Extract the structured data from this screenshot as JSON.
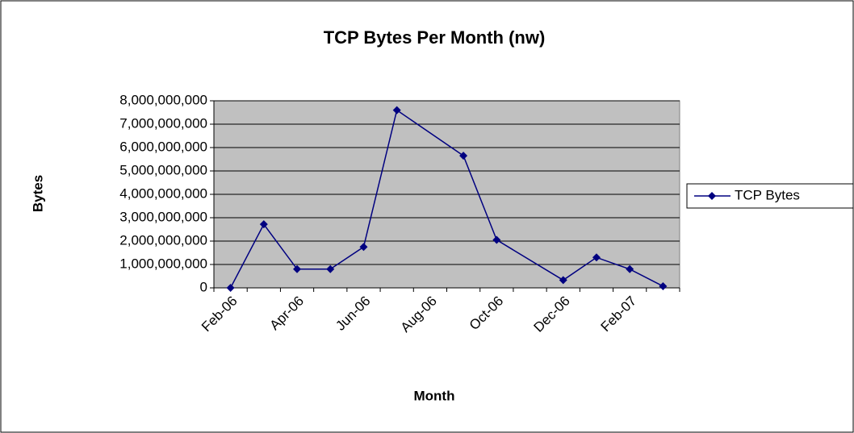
{
  "chart_data": {
    "type": "line",
    "title": "TCP Bytes Per Month (nw)",
    "x_label": "Month",
    "y_label": "Bytes",
    "x": [
      "2006-02",
      "2006-03",
      "2006-04",
      "2006-05",
      "2006-06",
      "2006-07",
      "2006-09",
      "2006-10",
      "2006-12",
      "2007-01",
      "2007-02",
      "2007-03"
    ],
    "xlim": [
      "2006-02",
      "2007-03"
    ],
    "xticks": [
      {
        "value": "2006-02",
        "label": "Feb-06"
      },
      {
        "value": "2006-04",
        "label": "Apr-06"
      },
      {
        "value": "2006-06",
        "label": "Jun-06"
      },
      {
        "value": "2006-08",
        "label": "Aug-06"
      },
      {
        "value": "2006-10",
        "label": "Oct-06"
      },
      {
        "value": "2006-12",
        "label": "Dec-06"
      },
      {
        "value": "2007-02",
        "label": "Feb-07"
      }
    ],
    "series": [
      {
        "name": "TCP Bytes",
        "color": "#000080",
        "values": [
          0,
          2720000000,
          800000000,
          800000000,
          1750000000,
          7600000000,
          5650000000,
          2050000000,
          330000000,
          1300000000,
          800000000,
          70000000
        ]
      }
    ],
    "ylim": [
      0,
      8000000000
    ],
    "yticks": [
      0,
      {
        "value": 1000000000,
        "label": "1,000,000,000"
      },
      {
        "value": 2000000000,
        "label": "2,000,000,000"
      },
      {
        "value": 3000000000,
        "label": "3,000,000,000"
      },
      {
        "value": 4000000000,
        "label": "4,000,000,000"
      },
      {
        "value": 5000000000,
        "label": "5,000,000,000"
      },
      {
        "value": 6000000000,
        "label": "6,000,000,000"
      },
      {
        "value": 7000000000,
        "label": "7,000,000,000"
      },
      {
        "value": 8000000000,
        "label": "8,000,000,000"
      }
    ],
    "grid": true,
    "legend": "right"
  }
}
